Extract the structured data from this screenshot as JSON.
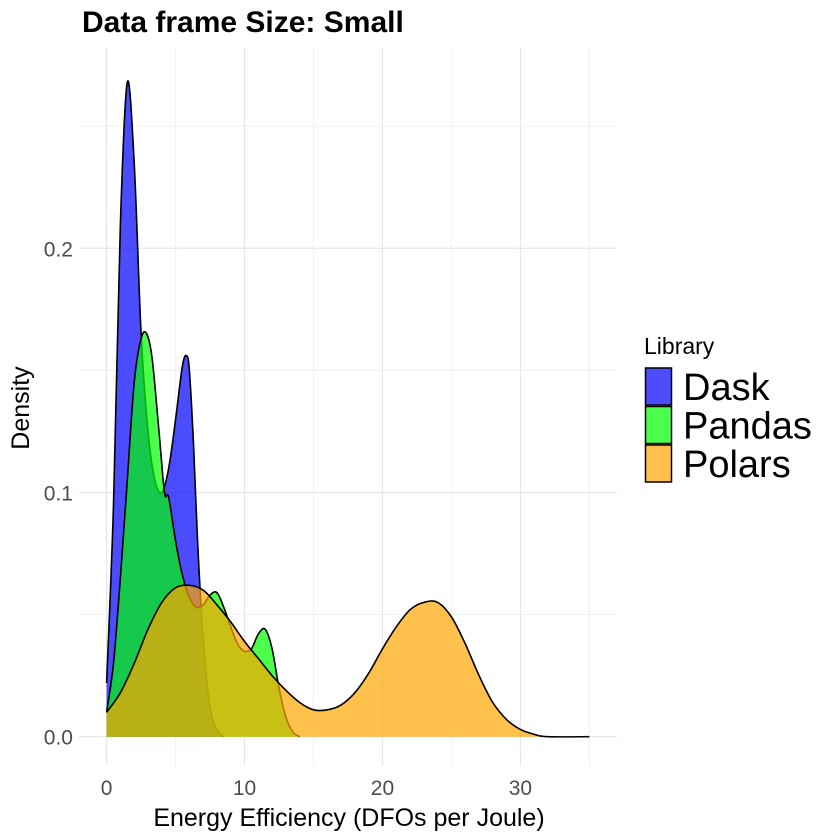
{
  "chart_data": {
    "type": "area",
    "title": "Data frame Size: Small",
    "xlabel": "Energy Efficiency (DFOs per Joule)",
    "ylabel": "Density",
    "xlim": [
      -2,
      37
    ],
    "ylim": [
      -0.012,
      0.282
    ],
    "x_ticks": [
      0,
      10,
      20,
      30
    ],
    "x_tick_labels": [
      "0",
      "10",
      "20",
      "30"
    ],
    "y_ticks": [
      0.0,
      0.1,
      0.2
    ],
    "y_tick_labels": [
      "0.0",
      "0.1",
      "0.2"
    ],
    "grid": true,
    "legend": {
      "title": "Library",
      "position": "right"
    },
    "series": [
      {
        "name": "Dask",
        "color": "#0000FF",
        "opacity": 0.7,
        "points": [
          [
            0,
            0.022
          ],
          [
            0.5,
            0.095
          ],
          [
            1,
            0.21
          ],
          [
            1.5,
            0.268
          ],
          [
            2,
            0.235
          ],
          [
            2.5,
            0.165
          ],
          [
            3,
            0.125
          ],
          [
            3.5,
            0.105
          ],
          [
            4,
            0.1
          ],
          [
            4.5,
            0.11
          ],
          [
            5,
            0.13
          ],
          [
            5.5,
            0.152
          ],
          [
            5.8,
            0.156
          ],
          [
            6,
            0.15
          ],
          [
            6.3,
            0.12
          ],
          [
            6.6,
            0.08
          ],
          [
            7,
            0.04
          ],
          [
            7.5,
            0.012
          ],
          [
            8,
            0.003
          ],
          [
            8.5,
            0
          ]
        ]
      },
      {
        "name": "Pandas",
        "color": "#00FF00",
        "opacity": 0.7,
        "points": [
          [
            0,
            0.01
          ],
          [
            0.5,
            0.03
          ],
          [
            1,
            0.065
          ],
          [
            1.5,
            0.105
          ],
          [
            2,
            0.145
          ],
          [
            2.5,
            0.163
          ],
          [
            2.9,
            0.165
          ],
          [
            3.3,
            0.155
          ],
          [
            3.8,
            0.125
          ],
          [
            4.2,
            0.1
          ],
          [
            4.5,
            0.098
          ],
          [
            5,
            0.08
          ],
          [
            5.5,
            0.066
          ],
          [
            6,
            0.057
          ],
          [
            6.5,
            0.053
          ],
          [
            7,
            0.054
          ],
          [
            7.5,
            0.058
          ],
          [
            8,
            0.059
          ],
          [
            8.5,
            0.053
          ],
          [
            9,
            0.045
          ],
          [
            9.5,
            0.038
          ],
          [
            10,
            0.035
          ],
          [
            10.5,
            0.036
          ],
          [
            11,
            0.042
          ],
          [
            11.5,
            0.044
          ],
          [
            12,
            0.036
          ],
          [
            12.5,
            0.02
          ],
          [
            13,
            0.008
          ],
          [
            13.5,
            0.002
          ],
          [
            14,
            0
          ]
        ]
      },
      {
        "name": "Polars",
        "color": "#FFA500",
        "opacity": 0.7,
        "points": [
          [
            0,
            0.01
          ],
          [
            1,
            0.018
          ],
          [
            2,
            0.03
          ],
          [
            3,
            0.044
          ],
          [
            4,
            0.055
          ],
          [
            5,
            0.061
          ],
          [
            6,
            0.062
          ],
          [
            7,
            0.06
          ],
          [
            8,
            0.054
          ],
          [
            9,
            0.047
          ],
          [
            10,
            0.039
          ],
          [
            11,
            0.032
          ],
          [
            12,
            0.025
          ],
          [
            13,
            0.019
          ],
          [
            14,
            0.014
          ],
          [
            15,
            0.011
          ],
          [
            16,
            0.011
          ],
          [
            17,
            0.013
          ],
          [
            18,
            0.018
          ],
          [
            19,
            0.026
          ],
          [
            20,
            0.036
          ],
          [
            21,
            0.045
          ],
          [
            22,
            0.052
          ],
          [
            23,
            0.055
          ],
          [
            24,
            0.055
          ],
          [
            25,
            0.049
          ],
          [
            26,
            0.038
          ],
          [
            27,
            0.025
          ],
          [
            28,
            0.014
          ],
          [
            29,
            0.007
          ],
          [
            30,
            0.003
          ],
          [
            31,
            0.001
          ],
          [
            32,
            0
          ],
          [
            35,
            0
          ]
        ]
      }
    ]
  }
}
